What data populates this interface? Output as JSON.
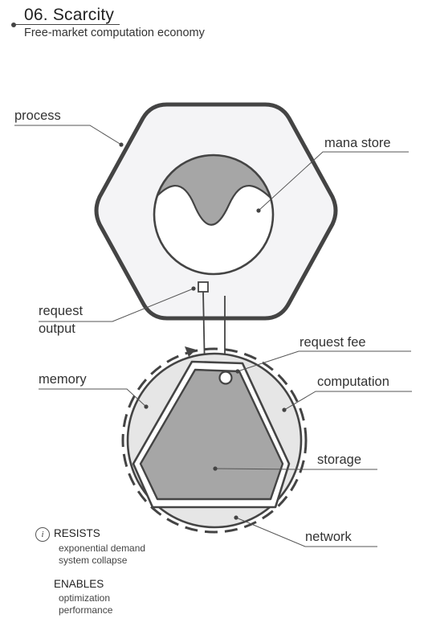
{
  "header": {
    "title": "06. Scarcity",
    "subtitle": "Free-market computation economy"
  },
  "labels": {
    "process": "process",
    "mana_store": "mana store",
    "request_output_line1": "request",
    "request_output_line2": "output",
    "request_fee": "request fee",
    "memory": "memory",
    "computation": "computation",
    "storage": "storage",
    "network": "network"
  },
  "legend": {
    "info_glyph": "i",
    "resists_title": "RESISTS",
    "resists_items": [
      "exponential demand",
      "system collapse"
    ],
    "enables_title": "ENABLES",
    "enables_items": [
      "optimization",
      "performance"
    ]
  },
  "colors": {
    "stroke": "#444444",
    "hexagon_fill": "#f4f4f6",
    "segment_fill": "#e6e6e6",
    "storage_fill": "#a6a6a6",
    "mana_fill": "#a6a6a6"
  }
}
